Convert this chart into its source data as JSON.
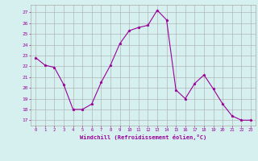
{
  "x": [
    0,
    1,
    2,
    3,
    4,
    5,
    6,
    7,
    8,
    9,
    10,
    11,
    12,
    13,
    14,
    15,
    16,
    17,
    18,
    19,
    20,
    21,
    22,
    23
  ],
  "y": [
    22.8,
    22.1,
    21.9,
    20.3,
    18.0,
    18.0,
    18.5,
    20.5,
    22.1,
    24.1,
    25.3,
    25.6,
    25.8,
    27.2,
    26.3,
    19.8,
    19.0,
    20.4,
    21.2,
    19.9,
    18.5,
    17.4,
    17.0,
    17.0
  ],
  "line_color": "#990099",
  "marker": "*",
  "marker_size": 2.5,
  "bg_color": "#d6f0f0",
  "grid_color": "#aaaaaa",
  "xlabel": "Windchill (Refroidissement éolien,°C)",
  "xlabel_color": "#990099",
  "tick_color": "#990099",
  "ylim": [
    16.5,
    27.7
  ],
  "yticks": [
    17,
    18,
    19,
    20,
    21,
    22,
    23,
    24,
    25,
    26,
    27
  ],
  "xticks": [
    0,
    1,
    2,
    3,
    4,
    5,
    6,
    7,
    8,
    9,
    10,
    11,
    12,
    13,
    14,
    15,
    16,
    17,
    18,
    19,
    20,
    21,
    22,
    23
  ],
  "xlim": [
    -0.5,
    23.5
  ]
}
